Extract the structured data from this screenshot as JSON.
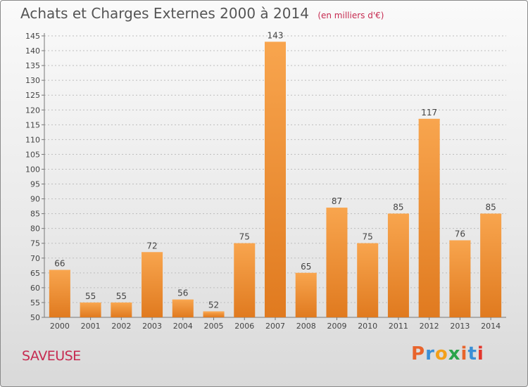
{
  "header": {
    "title": "Achats et Charges Externes 2000 à 2014",
    "unit": "(en milliers d'€)"
  },
  "footer": {
    "commune": "SAVEUSE",
    "logo_text": "Proxiti",
    "logo_colors": [
      "#e8642c",
      "#3a8fd6",
      "#f3a01a",
      "#2aa44a",
      "#e8642c",
      "#3a8fd6",
      "#e3362c"
    ]
  },
  "colors": {
    "bar_light": "#f8a54e",
    "bar_dark": "#e07a1f",
    "axis_text": "#444444",
    "grid": "#bdbdbd",
    "accent": "#c62a50"
  },
  "chart_data": {
    "type": "bar",
    "categories": [
      "2000",
      "2001",
      "2002",
      "2003",
      "2004",
      "2005",
      "2006",
      "2007",
      "2008",
      "2009",
      "2010",
      "2011",
      "2012",
      "2013",
      "2014"
    ],
    "values": [
      66,
      55,
      55,
      72,
      56,
      52,
      75,
      143,
      65,
      87,
      75,
      85,
      117,
      76,
      85
    ],
    "title": "Achats et Charges Externes 2000 à 2014",
    "ylim": [
      50,
      145
    ],
    "yticks": [
      50,
      55,
      60,
      65,
      70,
      75,
      80,
      85,
      90,
      95,
      100,
      105,
      110,
      115,
      120,
      125,
      130,
      135,
      140,
      145
    ],
    "grid": true
  }
}
